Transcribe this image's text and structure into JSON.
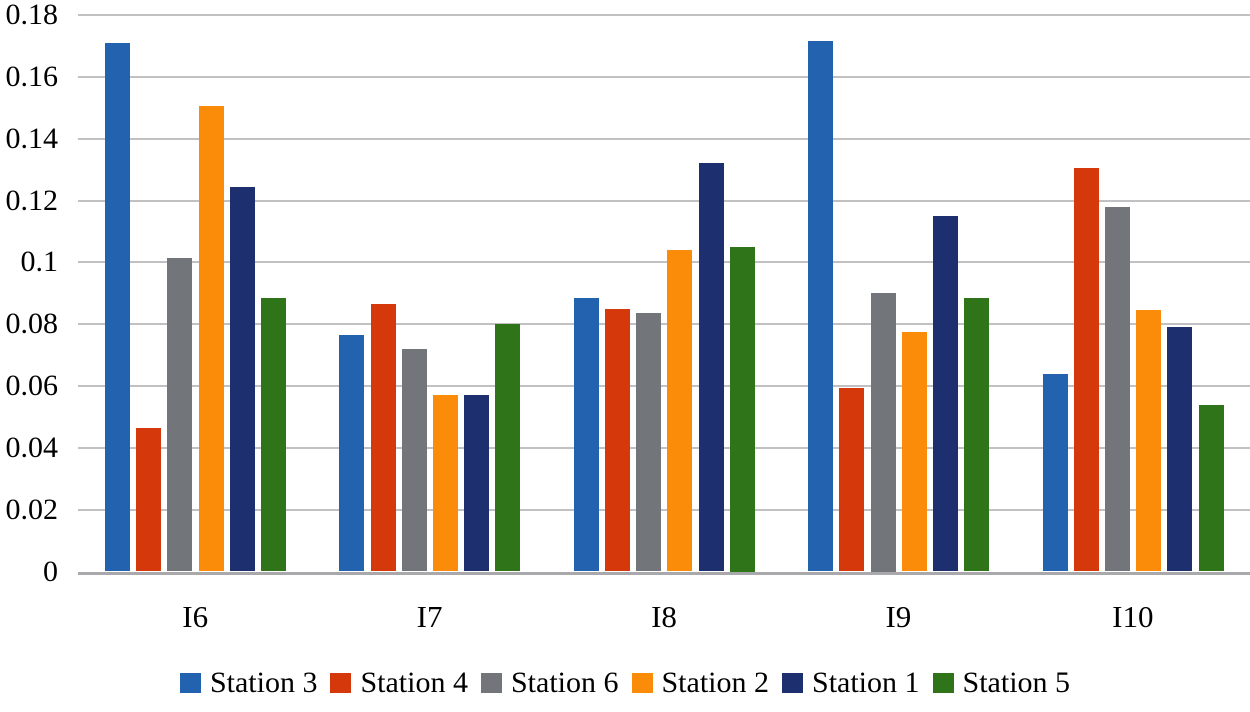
{
  "chart_data": {
    "type": "bar",
    "title": "",
    "xlabel": "",
    "ylabel": "",
    "categories": [
      "I6",
      "I7",
      "I8",
      "I9",
      "I10"
    ],
    "series": [
      {
        "name": "Station 3",
        "color": "#2262AE",
        "values": [
          0.171,
          0.0765,
          0.0885,
          0.1715,
          0.064
        ]
      },
      {
        "name": "Station 4",
        "color": "#D4380B",
        "values": [
          0.0465,
          0.0865,
          0.085,
          0.0595,
          0.1305
        ]
      },
      {
        "name": "Station 6",
        "color": "#72767B",
        "values": [
          0.1015,
          0.072,
          0.0835,
          0.09,
          0.118
        ]
      },
      {
        "name": "Station 2",
        "color": "#FB8C09",
        "values": [
          0.1505,
          0.057,
          0.104,
          0.0775,
          0.0845
        ]
      },
      {
        "name": "Station 1",
        "color": "#1D2F6F",
        "values": [
          0.1245,
          0.057,
          0.132,
          0.115,
          0.079
        ]
      },
      {
        "name": "Station 5",
        "color": "#2F7418",
        "values": [
          0.0885,
          0.08,
          0.105,
          0.0885,
          0.054
        ]
      }
    ],
    "ylim": [
      0,
      0.18
    ],
    "ytick_step": 0.02,
    "ytick_labels": [
      "0",
      "0.02",
      "0.04",
      "0.06",
      "0.08",
      "0.1",
      "0.12",
      "0.14",
      "0.16",
      "0.18"
    ],
    "grid": true,
    "gridline_color": "#C1C1C4",
    "axis_line_color": "#A9A9AC",
    "background_color": "#FFFFFF",
    "text_color": "#000000",
    "legend_position": "bottom"
  }
}
